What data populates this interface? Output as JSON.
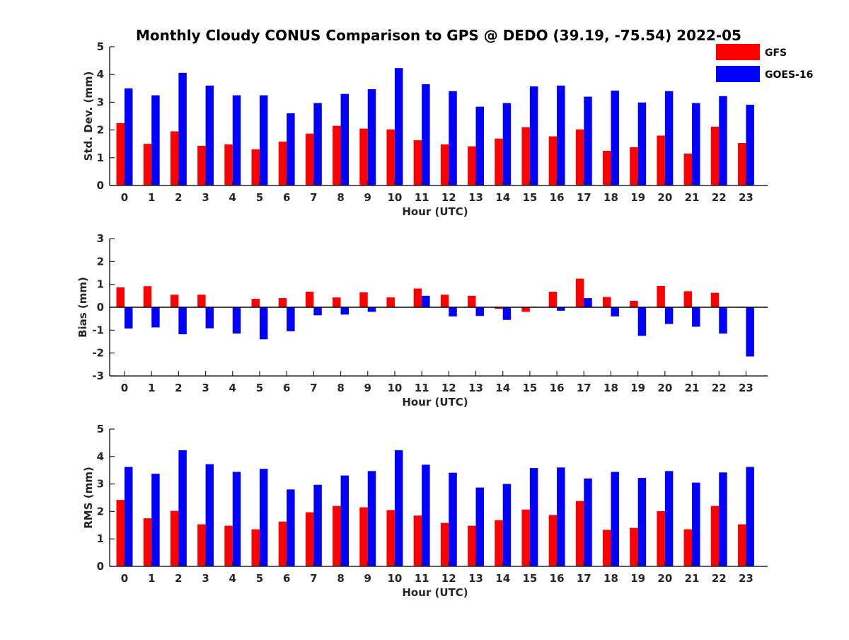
{
  "figure": {
    "title": "Monthly Cloudy CONUS Comparison to GPS @ DEDO (39.19, -75.54) 2022-05"
  },
  "legend": {
    "entries": [
      {
        "label": "GFS",
        "color": "#ff0000"
      },
      {
        "label": "GOES-16",
        "color": "#0000ff"
      }
    ],
    "placement": "top-right"
  },
  "chart_data": [
    {
      "type": "bar",
      "xlabel": "Hour (UTC)",
      "ylabel": "Std. Dev. (mm)",
      "ylim": [
        0,
        5
      ],
      "yticks": [
        "0",
        "1",
        "2",
        "3",
        "4",
        "5"
      ],
      "categories": [
        "0",
        "1",
        "2",
        "3",
        "4",
        "5",
        "6",
        "7",
        "8",
        "9",
        "10",
        "11",
        "12",
        "13",
        "14",
        "15",
        "16",
        "17",
        "18",
        "19",
        "20",
        "21",
        "22",
        "23"
      ],
      "series": [
        {
          "name": "GFS",
          "color": "#ff0000",
          "values": [
            2.25,
            1.5,
            1.95,
            1.43,
            1.48,
            1.3,
            1.58,
            1.87,
            2.15,
            2.05,
            2.02,
            1.63,
            1.48,
            1.41,
            1.69,
            2.1,
            1.77,
            2.02,
            1.25,
            1.38,
            1.8,
            1.15,
            2.12,
            1.53
          ]
        },
        {
          "name": "GOES-16",
          "color": "#0000ff",
          "values": [
            3.5,
            3.25,
            4.06,
            3.6,
            3.25,
            3.25,
            2.6,
            2.97,
            3.3,
            3.47,
            4.23,
            3.65,
            3.4,
            2.84,
            2.97,
            3.57,
            3.6,
            3.2,
            3.42,
            2.99,
            3.4,
            2.97,
            3.22,
            2.91
          ]
        }
      ]
    },
    {
      "type": "bar",
      "xlabel": "Hour (UTC)",
      "ylabel": "Bias (mm)",
      "ylim": [
        -3,
        3
      ],
      "yticks": [
        "-3",
        "-2",
        "-1",
        "0",
        "1",
        "2",
        "3"
      ],
      "categories": [
        "0",
        "1",
        "2",
        "3",
        "4",
        "5",
        "6",
        "7",
        "8",
        "9",
        "10",
        "11",
        "12",
        "13",
        "14",
        "15",
        "16",
        "17",
        "18",
        "19",
        "20",
        "21",
        "22",
        "23"
      ],
      "series": [
        {
          "name": "GFS",
          "color": "#ff0000",
          "values": [
            0.87,
            0.92,
            0.55,
            0.55,
            0.0,
            0.37,
            0.4,
            0.68,
            0.43,
            0.65,
            0.43,
            0.82,
            0.55,
            0.5,
            -0.07,
            -0.2,
            0.68,
            1.25,
            0.45,
            0.28,
            0.93,
            0.7,
            0.63,
            0.02
          ]
        },
        {
          "name": "GOES-16",
          "color": "#0000ff",
          "values": [
            -0.93,
            -0.88,
            -1.18,
            -0.92,
            -1.15,
            -1.4,
            -1.05,
            -0.35,
            -0.32,
            -0.2,
            0.0,
            0.5,
            -0.4,
            -0.38,
            -0.55,
            0.02,
            -0.15,
            0.4,
            -0.4,
            -1.25,
            -0.73,
            -0.85,
            -1.15,
            -2.15
          ]
        }
      ]
    },
    {
      "type": "bar",
      "xlabel": "Hour (UTC)",
      "ylabel": "RMS (mm)",
      "ylim": [
        0,
        5
      ],
      "yticks": [
        "0",
        "1",
        "2",
        "3",
        "4",
        "5"
      ],
      "categories": [
        "0",
        "1",
        "2",
        "3",
        "4",
        "5",
        "6",
        "7",
        "8",
        "9",
        "10",
        "11",
        "12",
        "13",
        "14",
        "15",
        "16",
        "17",
        "18",
        "19",
        "20",
        "21",
        "22",
        "23"
      ],
      "series": [
        {
          "name": "GFS",
          "color": "#ff0000",
          "values": [
            2.42,
            1.75,
            2.02,
            1.53,
            1.48,
            1.35,
            1.63,
            1.97,
            2.2,
            2.15,
            2.05,
            1.85,
            1.58,
            1.48,
            1.68,
            2.07,
            1.87,
            2.38,
            1.33,
            1.4,
            2.01,
            1.35,
            2.2,
            1.53
          ]
        },
        {
          "name": "GOES-16",
          "color": "#0000ff",
          "values": [
            3.62,
            3.37,
            4.23,
            3.72,
            3.44,
            3.55,
            2.8,
            2.97,
            3.31,
            3.47,
            4.23,
            3.7,
            3.41,
            2.87,
            3.0,
            3.58,
            3.6,
            3.2,
            3.44,
            3.22,
            3.47,
            3.05,
            3.42,
            3.62
          ]
        }
      ]
    }
  ]
}
